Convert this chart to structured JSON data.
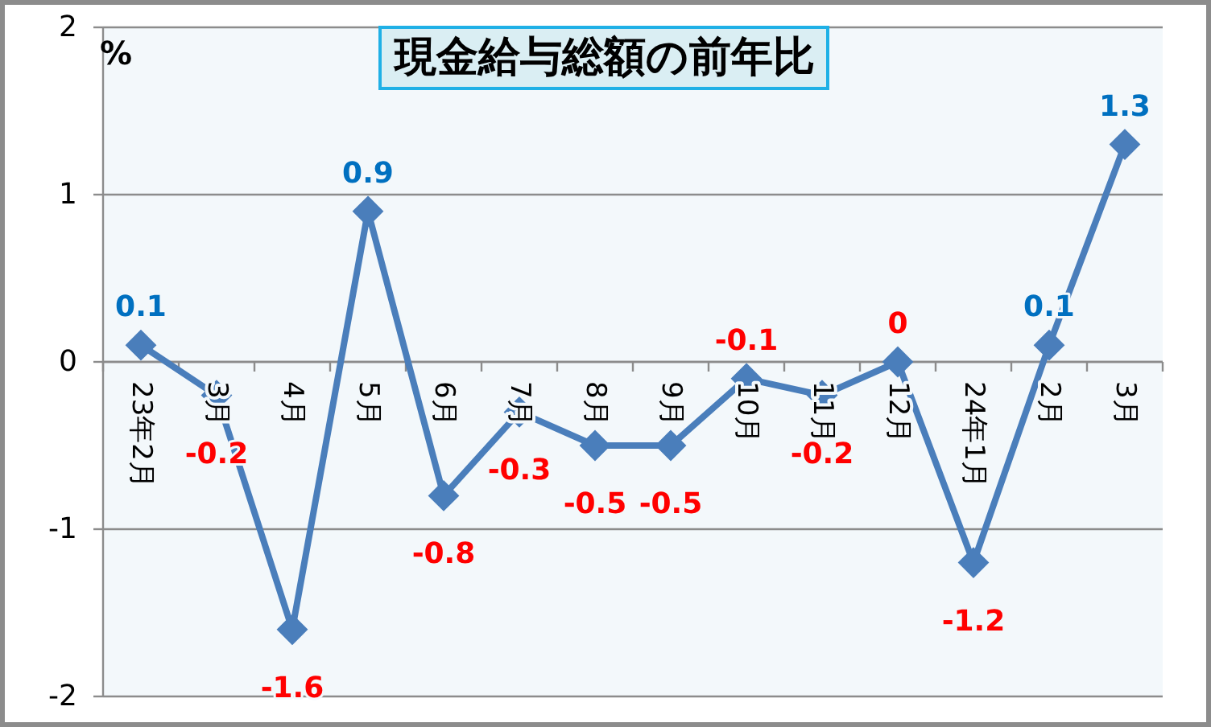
{
  "chart_data": {
    "type": "line",
    "title": "現金給与総額の前年比",
    "ylabel": "%",
    "categories": [
      "23年2月",
      "3月",
      "4月",
      "5月",
      "6月",
      "7月",
      "8月",
      "9月",
      "10月",
      "11月",
      "12月",
      "24年1月",
      "2月",
      "3月"
    ],
    "series": [
      {
        "color": "#4a7ebb",
        "values": [
          0.1,
          -0.2,
          -1.6,
          0.9,
          -0.8,
          -0.3,
          -0.5,
          -0.5,
          -0.1,
          -0.2,
          0,
          -1.2,
          0.1,
          1.3
        ]
      }
    ],
    "ylim": [
      -2,
      2
    ],
    "yticks": [
      -2,
      -1,
      0,
      1,
      2
    ],
    "grid": "y",
    "marker": "diamond",
    "line_style": "solid",
    "data_labels": true
  }
}
